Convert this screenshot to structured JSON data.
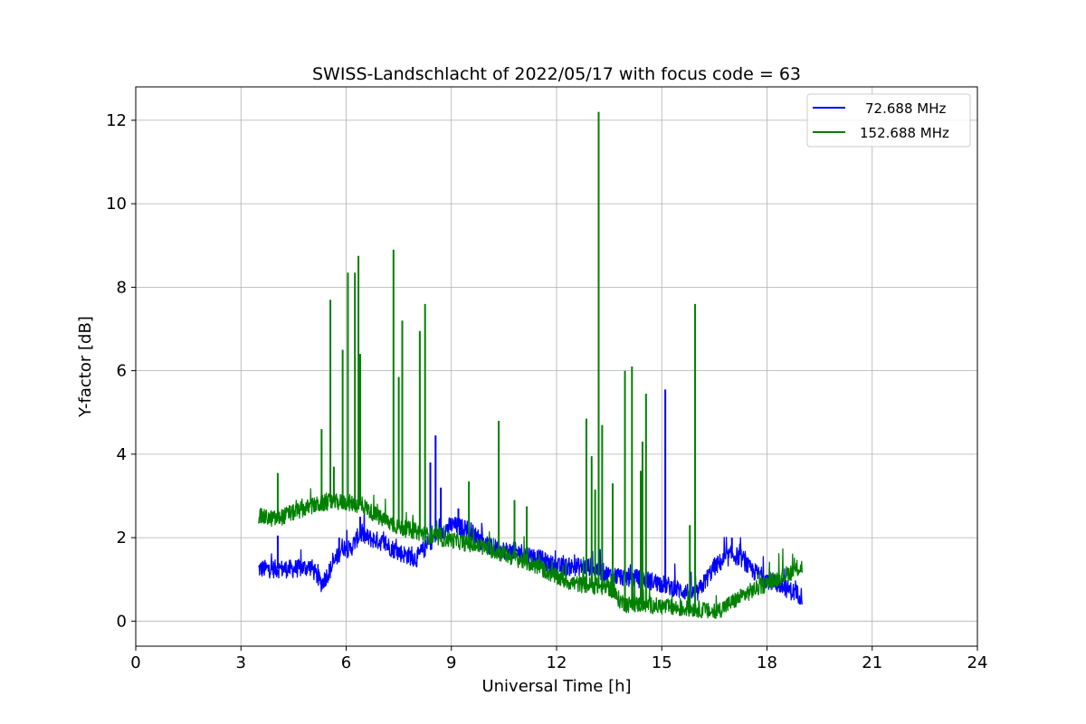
{
  "chart_data": {
    "type": "line",
    "title": "SWISS-Landschlacht of 2022/05/17 with focus code = 63",
    "xlabel": "Universal Time [h]",
    "ylabel": "Y-factor [dB]",
    "xlim": [
      0,
      24
    ],
    "ylim": [
      -0.6,
      12.8
    ],
    "xticks": [
      0,
      3,
      6,
      9,
      12,
      15,
      18,
      21,
      24
    ],
    "yticks": [
      0,
      2,
      4,
      6,
      8,
      10,
      12
    ],
    "grid": true,
    "legend_position": "top-right",
    "series": [
      {
        "name": "72.688 MHz",
        "color": "#0000ff",
        "baseline": [
          [
            3.5,
            1.25
          ],
          [
            4.0,
            1.25
          ],
          [
            4.5,
            1.25
          ],
          [
            5.0,
            1.3
          ],
          [
            5.3,
            0.9
          ],
          [
            5.6,
            1.3
          ],
          [
            5.9,
            1.8
          ],
          [
            6.1,
            1.7
          ],
          [
            6.4,
            2.1
          ],
          [
            6.6,
            2.0
          ],
          [
            7.0,
            1.9
          ],
          [
            7.5,
            1.65
          ],
          [
            8.0,
            1.5
          ],
          [
            8.5,
            2.0
          ],
          [
            9.0,
            2.3
          ],
          [
            9.5,
            2.2
          ],
          [
            10.0,
            1.8
          ],
          [
            10.5,
            1.7
          ],
          [
            11.0,
            1.65
          ],
          [
            11.5,
            1.5
          ],
          [
            12.0,
            1.3
          ],
          [
            12.5,
            1.3
          ],
          [
            13.0,
            1.3
          ],
          [
            13.5,
            1.1
          ],
          [
            14.0,
            1.05
          ],
          [
            14.5,
            1.0
          ],
          [
            15.0,
            0.9
          ],
          [
            15.5,
            0.75
          ],
          [
            16.0,
            0.65
          ],
          [
            16.5,
            1.3
          ],
          [
            17.0,
            1.6
          ],
          [
            17.3,
            1.5
          ],
          [
            17.5,
            1.25
          ],
          [
            18.0,
            1.0
          ],
          [
            18.5,
            0.8
          ],
          [
            19.0,
            0.6
          ]
        ],
        "spikes": [
          [
            4.05,
            2.05
          ],
          [
            5.8,
            2.0
          ],
          [
            6.4,
            2.5
          ],
          [
            8.4,
            3.8
          ],
          [
            8.55,
            4.45
          ],
          [
            8.7,
            3.2
          ],
          [
            9.2,
            2.7
          ],
          [
            15.1,
            5.55
          ],
          [
            17.0,
            2.0
          ]
        ]
      },
      {
        "name": "152.688 MHz",
        "color": "#008000",
        "baseline": [
          [
            3.5,
            2.5
          ],
          [
            4.0,
            2.45
          ],
          [
            4.5,
            2.6
          ],
          [
            5.0,
            2.75
          ],
          [
            5.5,
            2.85
          ],
          [
            6.0,
            2.85
          ],
          [
            6.5,
            2.75
          ],
          [
            7.0,
            2.45
          ],
          [
            7.5,
            2.25
          ],
          [
            8.0,
            2.15
          ],
          [
            8.5,
            2.0
          ],
          [
            9.0,
            1.95
          ],
          [
            9.5,
            1.85
          ],
          [
            10.0,
            1.75
          ],
          [
            10.5,
            1.6
          ],
          [
            11.0,
            1.45
          ],
          [
            11.5,
            1.3
          ],
          [
            12.0,
            1.05
          ],
          [
            12.5,
            0.9
          ],
          [
            13.0,
            0.85
          ],
          [
            13.5,
            0.8
          ],
          [
            13.8,
            0.5
          ],
          [
            14.0,
            0.4
          ],
          [
            14.5,
            0.4
          ],
          [
            15.0,
            0.35
          ],
          [
            15.5,
            0.3
          ],
          [
            16.0,
            0.3
          ],
          [
            16.5,
            0.2
          ],
          [
            17.0,
            0.45
          ],
          [
            17.5,
            0.7
          ],
          [
            18.0,
            0.9
          ],
          [
            18.5,
            1.1
          ],
          [
            19.0,
            1.3
          ]
        ],
        "spikes": [
          [
            4.05,
            3.55
          ],
          [
            5.3,
            4.6
          ],
          [
            5.55,
            7.7
          ],
          [
            5.65,
            3.7
          ],
          [
            5.9,
            6.5
          ],
          [
            6.05,
            8.35
          ],
          [
            6.25,
            8.35
          ],
          [
            6.35,
            8.75
          ],
          [
            6.4,
            6.4
          ],
          [
            7.35,
            8.9
          ],
          [
            7.5,
            5.85
          ],
          [
            7.6,
            7.2
          ],
          [
            8.1,
            6.95
          ],
          [
            8.25,
            7.6
          ],
          [
            9.5,
            3.35
          ],
          [
            10.35,
            4.8
          ],
          [
            10.8,
            2.9
          ],
          [
            11.15,
            2.75
          ],
          [
            12.85,
            4.85
          ],
          [
            13.0,
            3.95
          ],
          [
            13.1,
            3.15
          ],
          [
            13.2,
            12.2
          ],
          [
            13.3,
            4.7
          ],
          [
            13.6,
            3.3
          ],
          [
            13.95,
            6.0
          ],
          [
            14.15,
            6.1
          ],
          [
            14.4,
            3.6
          ],
          [
            14.45,
            4.3
          ],
          [
            14.55,
            5.45
          ],
          [
            15.8,
            2.3
          ],
          [
            15.95,
            7.6
          ]
        ]
      }
    ]
  }
}
